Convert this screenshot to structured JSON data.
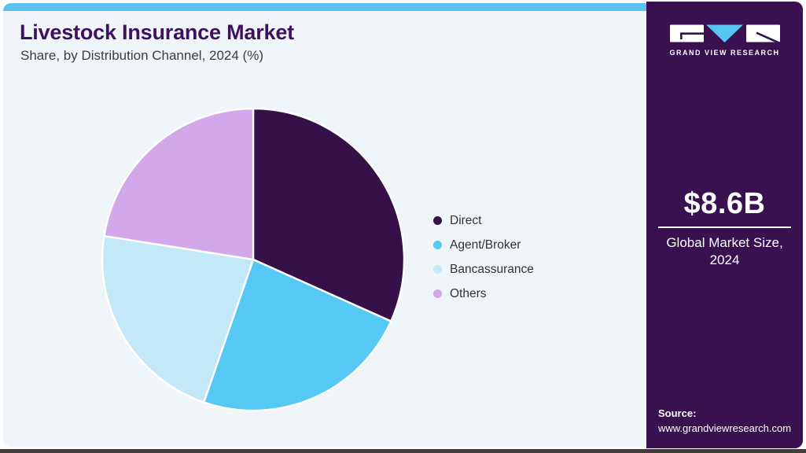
{
  "header": {
    "title": "Livestock Insurance Market",
    "subtitle": "Share, by Distribution Channel, 2024 (%)"
  },
  "chart_data": {
    "type": "pie",
    "title": "Livestock Insurance Market Share, by Distribution Channel, 2024 (%)",
    "unit": "%",
    "categories": [
      "Direct",
      "Agent/Broker",
      "Bancassurance",
      "Others"
    ],
    "values": [
      31.7,
      23.6,
      22.2,
      22.5
    ],
    "colors": [
      "#361049",
      "#56c8f4",
      "#c3e9f8",
      "#d3a8ea"
    ],
    "start_angle_deg": 0,
    "direction": "clockwise",
    "legend_position": "right",
    "data_labels_shown": false
  },
  "sidebar": {
    "logo_text": "GRAND VIEW RESEARCH",
    "market_size_value": "$8.6B",
    "market_size_label_line1": "Global Market Size,",
    "market_size_label_line2": "2024",
    "source_label": "Source:",
    "source_url": "www.grandviewresearch.com"
  },
  "theme": {
    "topbar": "#5bc3ee",
    "card_bg": "#eff5f9",
    "sidebar_bg": "#3a1150",
    "title_color": "#3e1060",
    "logo_triangle": "#56c5f0",
    "pie_stroke": "#ffffff",
    "bottom_line": "#423e3e"
  }
}
